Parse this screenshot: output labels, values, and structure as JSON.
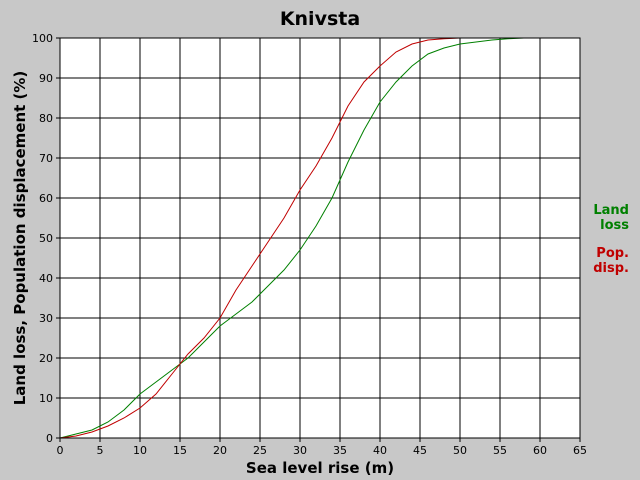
{
  "chart_data": {
    "type": "line",
    "title": "Knivsta",
    "xlabel": "Sea level rise (m)",
    "ylabel": "Land loss, Population displacement (%)",
    "xlim": [
      0,
      65
    ],
    "ylim": [
      0,
      100
    ],
    "xticks": [
      0,
      5,
      10,
      15,
      20,
      25,
      30,
      35,
      40,
      45,
      50,
      55,
      60,
      65
    ],
    "yticks": [
      0,
      10,
      20,
      30,
      40,
      50,
      60,
      70,
      80,
      90,
      100
    ],
    "grid": true,
    "legend_position": "right",
    "series": [
      {
        "name": "Land loss",
        "legend_lines": [
          "Land",
          "loss"
        ],
        "color": "#008000",
        "x": [
          0,
          2,
          4,
          6,
          8,
          10,
          12,
          14,
          16,
          18,
          20,
          22,
          24,
          26,
          28,
          30,
          32,
          34,
          36,
          38,
          40,
          42,
          44,
          46,
          48,
          50,
          52,
          54,
          56,
          58,
          60,
          62,
          65
        ],
        "y": [
          0,
          1,
          2,
          4,
          7,
          11,
          14,
          17,
          20,
          24,
          28,
          31,
          34,
          38,
          42,
          47,
          53,
          60,
          69,
          77,
          84,
          89,
          93,
          96,
          97.5,
          98.5,
          99,
          99.5,
          99.8,
          100,
          100,
          100,
          100
        ]
      },
      {
        "name": "Pop. disp.",
        "legend_lines": [
          "Pop.",
          "disp."
        ],
        "color": "#c00000",
        "x": [
          0,
          2,
          4,
          6,
          8,
          10,
          12,
          14,
          16,
          18,
          20,
          22,
          24,
          26,
          28,
          30,
          32,
          34,
          36,
          38,
          40,
          42,
          44,
          46,
          48,
          50,
          52,
          55,
          58,
          60,
          62,
          65
        ],
        "y": [
          0,
          0.5,
          1.5,
          3,
          5,
          7.5,
          11,
          16,
          21,
          25,
          30,
          37,
          43,
          49,
          55,
          62,
          68,
          75,
          83,
          89,
          93,
          96.5,
          98.5,
          99.5,
          99.8,
          100,
          100,
          100,
          100,
          100,
          100,
          100
        ]
      }
    ]
  }
}
